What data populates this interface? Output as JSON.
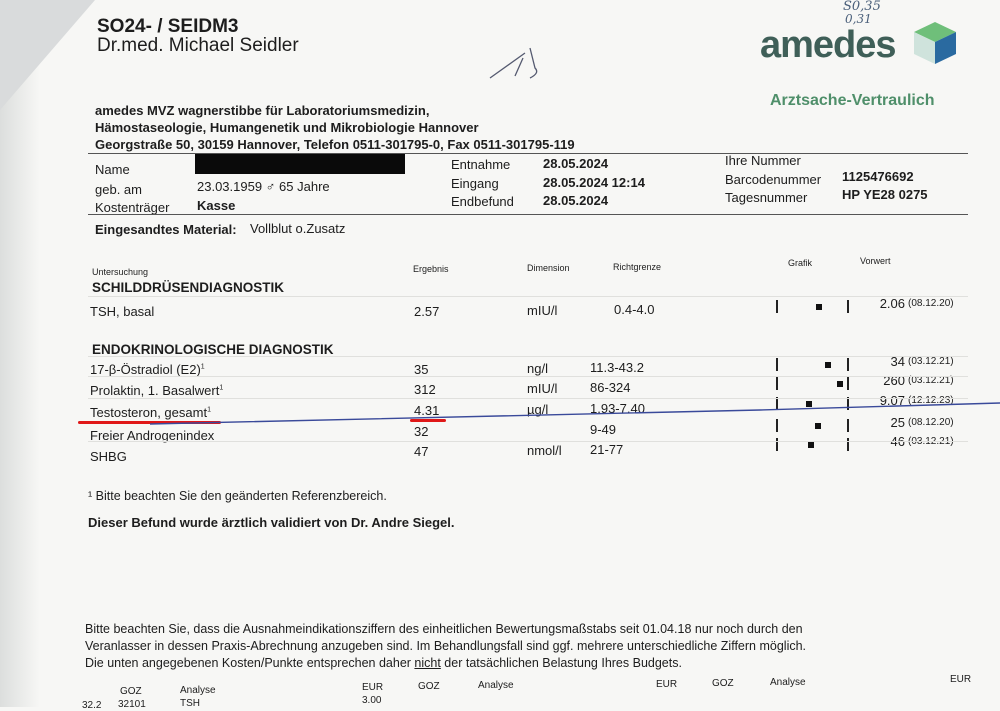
{
  "header": {
    "code": "SO24- / SEIDM3",
    "doctor": "Dr.med. Michael Seidler",
    "logo_text": "amedes",
    "confidential": "Arztsache-Vertraulich",
    "handwritten_note": [
      "S0,35",
      "0,31"
    ],
    "lab_lines": [
      "amedes MVZ wagnerstibbe für Laboratoriumsmedizin,",
      "Hämostaseologie, Humangenetik und Mikrobiologie Hannover",
      "Georgstraße 50, 30159 Hannover, Telefon 0511-301795-0, Fax 0511-301795-119"
    ],
    "brand_color": "#3f5f58",
    "accent_color": "#4f8f6a"
  },
  "patient": {
    "name_label": "Name",
    "dob_label": "geb. am",
    "dob_value": "23.03.1959 ♂ 65 Jahre",
    "payer_label": "Kostenträger",
    "payer_value": "Kasse",
    "entnahme_label": "Entnahme",
    "entnahme_value": "28.05.2024",
    "eingang_label": "Eingang",
    "eingang_value": "28.05.2024 12:14",
    "endbefund_label": "Endbefund",
    "endbefund_value": "28.05.2024",
    "ihre_nummer_label": "Ihre Nummer",
    "barcode_label": "Barcodenummer",
    "barcode_value": "1125476692",
    "tages_label": "Tagesnummer",
    "tages_value": "HP YE28 0275"
  },
  "material": {
    "label": "Eingesandtes Material:",
    "value": "Vollblut o.Zusatz"
  },
  "table": {
    "columns": [
      "Untersuchung",
      "Ergebnis",
      "Dimension",
      "Richtgrenze",
      "Grafik",
      "Vorwert"
    ],
    "sections": [
      {
        "title": "SCHILDDRÜSENDIAGNOSTIK",
        "rows": [
          {
            "name": "TSH, basal",
            "sup": "",
            "result": "2.57",
            "unit": "mIU/l",
            "range": "0.4-4.0",
            "low": 0.4,
            "high": 4.0,
            "value": 2.57,
            "prev": "2.06",
            "prev_date": "(08.12.20)"
          }
        ]
      },
      {
        "title": "ENDOKRINOLOGISCHE DIAGNOSTIK",
        "rows": [
          {
            "name": "17-β-Östradiol (E2)",
            "sup": "1",
            "result": "35",
            "unit": "ng/l",
            "range": "11.3-43.2",
            "low": 11.3,
            "high": 43.2,
            "value": 35,
            "prev": "34",
            "prev_date": "(03.12.21)"
          },
          {
            "name": "Prolaktin, 1. Basalwert",
            "sup": "1",
            "result": "312",
            "unit": "mIU/l",
            "range": "86-324",
            "low": 86,
            "high": 324,
            "value": 312,
            "prev": "260",
            "prev_date": "(03.12.21)"
          },
          {
            "name": "Testosteron, gesamt",
            "sup": "1",
            "result": "4.31",
            "unit": "µg/l",
            "range": "1.93-7.40",
            "low": 1.93,
            "high": 7.4,
            "value": 4.31,
            "prev": "9.07",
            "prev_date": "(12.12.23)",
            "highlighted": true
          },
          {
            "name": "Freier Androgenindex",
            "sup": "",
            "result": "32",
            "unit": "",
            "range": "9-49",
            "low": 9,
            "high": 49,
            "value": 32,
            "prev": "25",
            "prev_date": "(08.12.20)"
          },
          {
            "name": "SHBG",
            "sup": "",
            "result": "47",
            "unit": "nmol/l",
            "range": "21-77",
            "low": 21,
            "high": 77,
            "value": 47,
            "prev": "46",
            "prev_date": "(03.12.21)"
          }
        ]
      }
    ]
  },
  "footnote": "¹ Bitte beachten Sie den geänderten Referenzbereich.",
  "validated": "Dieser Befund wurde ärztlich validiert von Dr. Andre Siegel.",
  "notice": [
    "Bitte beachten Sie, dass die Ausnahmeindikationsziffern des einheitlichen Bewertungsmaßstabs seit 01.04.18 nur noch durch den",
    "Veranlasser in dessen Praxis-Abrechnung anzugeben sind. Im Behandlungsfall sind ggf. mehrere unterschiedliche Ziffern möglich.",
    "Die unten angegebenen Kosten/Punkte entsprechen daher ",
    "nicht",
    " der tatsächlichen Belastung Ihres Budgets."
  ],
  "billing": {
    "headers": [
      "GOZ",
      "Analyse",
      "EUR",
      "GOZ",
      "Analyse",
      "EUR",
      "GOZ",
      "Analyse",
      "EUR"
    ],
    "row1": {
      "col0": "32.2",
      "goz": "32101",
      "analyse": "TSH",
      "eur": "3.00"
    }
  }
}
